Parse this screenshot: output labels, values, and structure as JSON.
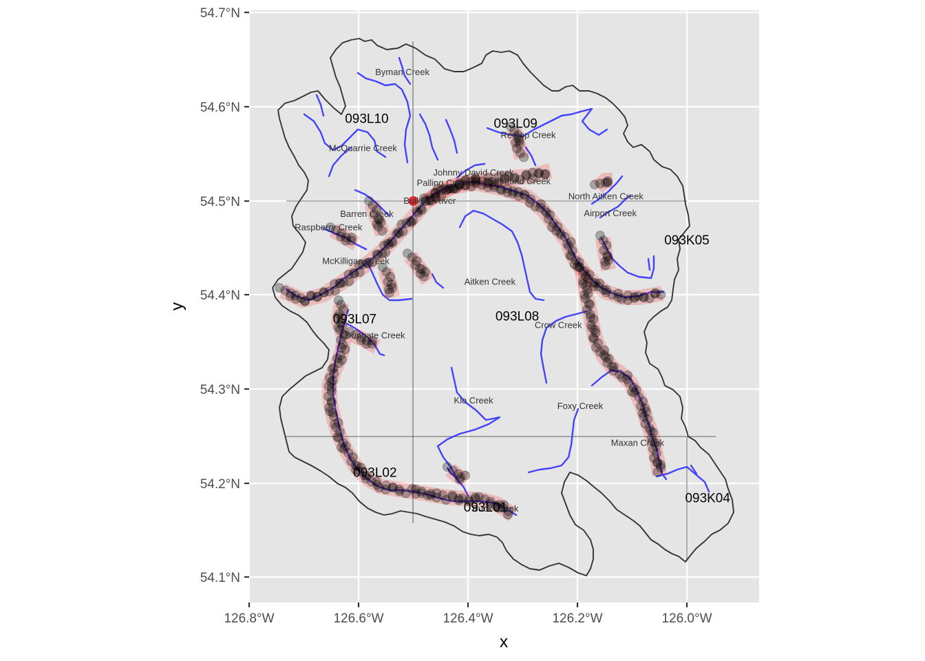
{
  "axes": {
    "xlabel": "x",
    "ylabel": "y",
    "x_ticks": [
      "126.8°W",
      "126.6°W",
      "126.4°W",
      "126.2°W",
      "126.0°W"
    ],
    "y_ticks": [
      "54.1°N",
      "54.2°N",
      "54.3°N",
      "54.4°N",
      "54.5°N",
      "54.6°N",
      "54.7°N"
    ],
    "xlim": [
      -126.805,
      -125.87
    ],
    "ylim": [
      54.075,
      54.7
    ]
  },
  "colors": {
    "panel": "#e5e5e5",
    "grid": "#ffffff",
    "boundary": "#333333",
    "streams": "#3a3aff",
    "buffer": "#ff0000",
    "points": "#000000",
    "highlight": "#e41a1c"
  },
  "tile_labels": [
    {
      "text": "093L10",
      "lon": -126.585,
      "lat": 54.583
    },
    {
      "text": "093L09",
      "lon": -126.313,
      "lat": 54.578
    },
    {
      "text": "093K05",
      "lon": -126.0,
      "lat": 54.454
    },
    {
      "text": "093L08",
      "lon": -126.31,
      "lat": 54.373
    },
    {
      "text": "093L07",
      "lon": -126.607,
      "lat": 54.37
    },
    {
      "text": "093L02",
      "lon": -126.57,
      "lat": 54.207
    },
    {
      "text": "093L01",
      "lon": -126.368,
      "lat": 54.17
    },
    {
      "text": "093K04",
      "lon": -125.962,
      "lat": 54.18
    }
  ],
  "creek_labels": [
    {
      "text": "Byman Creek",
      "lon": -126.52,
      "lat": 54.634
    },
    {
      "text": "Redtop Creek",
      "lon": -126.29,
      "lat": 54.567
    },
    {
      "text": "McQuarrie Creek",
      "lon": -126.592,
      "lat": 54.553
    },
    {
      "text": "Johnny David Creek",
      "lon": -126.39,
      "lat": 54.527
    },
    {
      "text": "Palling Creek",
      "lon": -126.445,
      "lat": 54.516
    },
    {
      "text": "Richmond Creek",
      "lon": -126.31,
      "lat": 54.518
    },
    {
      "text": "North Aitken Creek",
      "lon": -126.148,
      "lat": 54.502
    },
    {
      "text": "Bulkley River",
      "lon": -126.47,
      "lat": 54.497
    },
    {
      "text": "Barren Creek",
      "lon": -126.585,
      "lat": 54.483
    },
    {
      "text": "Airport Creek",
      "lon": -126.14,
      "lat": 54.484
    },
    {
      "text": "Raspberry Creek",
      "lon": -126.655,
      "lat": 54.469
    },
    {
      "text": "McKilligan Creek",
      "lon": -126.605,
      "lat": 54.433
    },
    {
      "text": "Aitken Creek",
      "lon": -126.36,
      "lat": 54.411
    },
    {
      "text": "Crow Creek",
      "lon": -126.235,
      "lat": 54.365
    },
    {
      "text": "Dungate Creek",
      "lon": -126.57,
      "lat": 54.354
    },
    {
      "text": "Klo Creek",
      "lon": -126.39,
      "lat": 54.285
    },
    {
      "text": "Foxy Creek",
      "lon": -126.195,
      "lat": 54.279
    },
    {
      "text": "Maxan Creek",
      "lon": -126.09,
      "lat": 54.24
    },
    {
      "text": "Buck Creek",
      "lon": -126.35,
      "lat": 54.17
    }
  ],
  "highlight_point": {
    "lon": -126.5,
    "lat": 54.5
  }
}
